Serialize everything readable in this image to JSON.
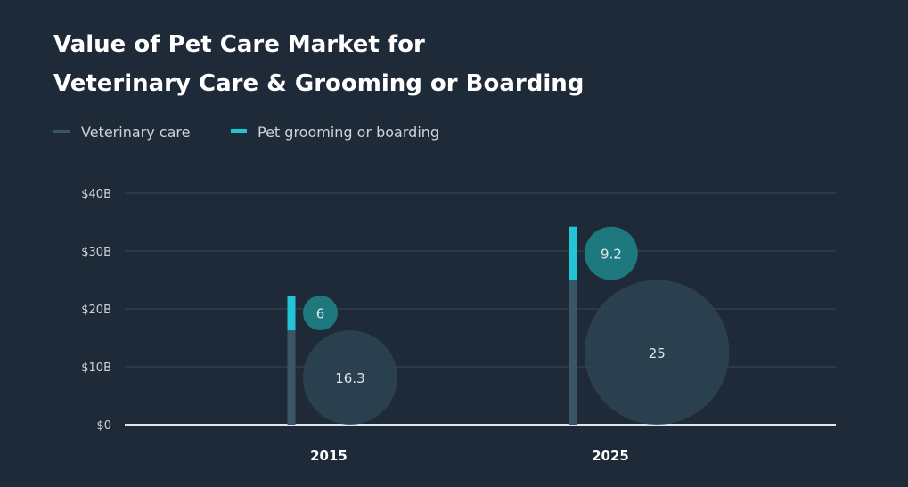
{
  "chart_data": {
    "type": "bar",
    "title_lines": [
      "Value of Pet Care Market for",
      "Veterinary Care & Grooming or Boarding"
    ],
    "categories": [
      "2015",
      "2025"
    ],
    "series": [
      {
        "name": "Veterinary care",
        "values": [
          16.3,
          25
        ],
        "color": "#3a5666",
        "bubble_color": "#2e4452"
      },
      {
        "name": "Pet grooming or boarding",
        "values": [
          6,
          9.2
        ],
        "color": "#22c4d6",
        "bubble_color": "#1e7d82"
      }
    ],
    "stacked": true,
    "y_ticks": [
      {
        "value": 0,
        "label": "$0"
      },
      {
        "value": 10,
        "label": "$10B"
      },
      {
        "value": 20,
        "label": "$20B"
      },
      {
        "value": 30,
        "label": "$30B"
      },
      {
        "value": 40,
        "label": "$40B"
      }
    ],
    "ylim": [
      0,
      40
    ],
    "grid": true,
    "legend_position": "top-left",
    "colors": {
      "background": "#1e2a38",
      "title": "#ffffff",
      "text": "#c9d4dc",
      "grid": "#3b4a59",
      "baseline": "#dfe6ea"
    }
  }
}
